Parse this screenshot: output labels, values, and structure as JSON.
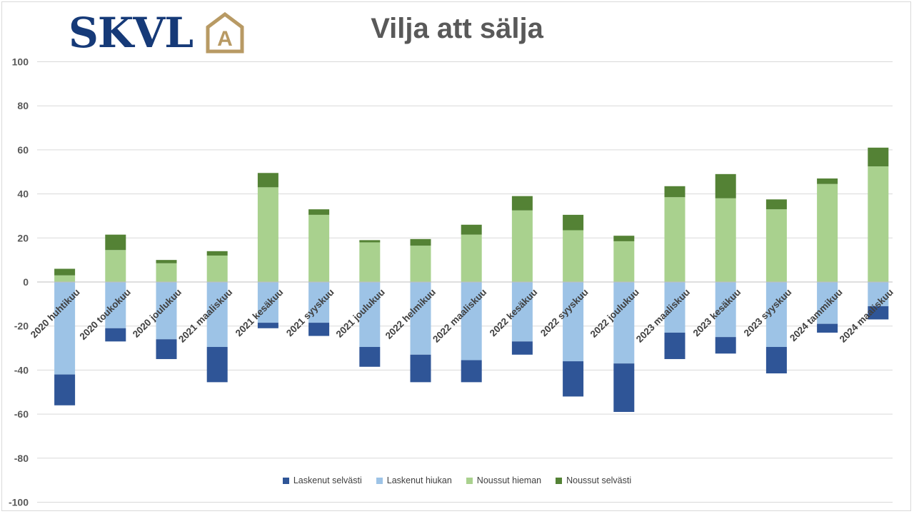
{
  "logo": {
    "text": "SKVL",
    "mark_letter": "A",
    "colors": {
      "text": "#163a78",
      "mark": "#b89a64"
    }
  },
  "chart_data": {
    "type": "bar",
    "stacked": true,
    "title": "Vilja att sälja",
    "xlabel": "",
    "ylabel": "",
    "ylim": [
      -100,
      100
    ],
    "yticks": [
      100,
      80,
      60,
      40,
      20,
      0,
      -20,
      -40,
      -60,
      -80,
      -100
    ],
    "grid": true,
    "legend_position": "bottom",
    "categories": [
      "2020 huhtikuu",
      "2020 toukokuu",
      "2020 joulukuu",
      "2021 maaliskuu",
      "2021 kesäkuu",
      "2021 syyskuu",
      "2021 joulukuu",
      "2022 helmikuu",
      "2022 maaliskuu",
      "2022 kesäkuu",
      "2022 syyskuu",
      "2022 joulukuu",
      "2023 maaliskuu",
      "2023 kesäkuu",
      "2023 syyskuu",
      "2024 tammikuu",
      "2024 maaliskuu"
    ],
    "series": [
      {
        "name": "Laskenut selvästi",
        "color": "#2f5597",
        "values": [
          -14,
          -6,
          -9,
          -16,
          -2.5,
          -6,
          -9,
          -12.5,
          -10,
          -6,
          -16,
          -22,
          -12,
          -7.5,
          -12,
          -4,
          -6
        ]
      },
      {
        "name": "Laskenut hiukan",
        "color": "#9dc3e6",
        "values": [
          -42,
          -21,
          -26,
          -29.5,
          -18.5,
          -18.5,
          -29.5,
          -33,
          -35.5,
          -27,
          -36,
          -37,
          -23,
          -25,
          -29.5,
          -19,
          -11
        ]
      },
      {
        "name": "Noussut hieman",
        "color": "#a9d18e",
        "values": [
          3,
          14.5,
          8.5,
          12,
          43,
          30.5,
          18,
          16.5,
          21.5,
          32.5,
          23.5,
          18.5,
          38.5,
          38,
          33,
          44.5,
          52.5
        ]
      },
      {
        "name": "Noussut selvästi",
        "color": "#548235",
        "values": [
          3,
          7,
          1.5,
          2,
          6.5,
          2.5,
          1,
          3,
          4.5,
          6.5,
          7,
          2.5,
          5,
          11,
          4.5,
          2.5,
          8.5
        ]
      }
    ]
  }
}
